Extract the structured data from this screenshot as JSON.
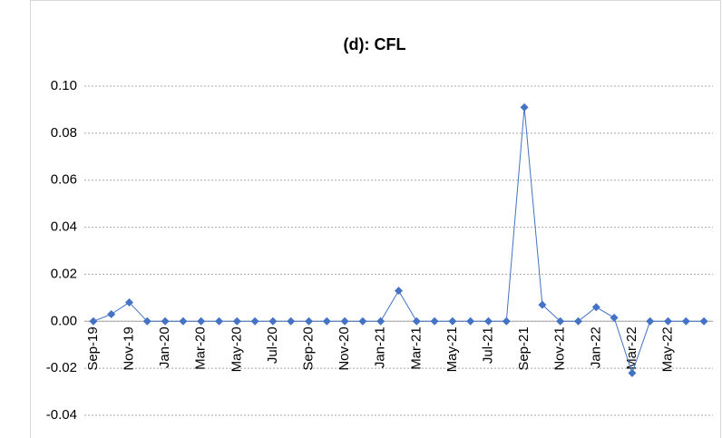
{
  "chart_data": {
    "type": "line",
    "title": "(d): CFL",
    "categories": [
      "Sep-19",
      null,
      "Nov-19",
      null,
      "Jan-20",
      null,
      "Mar-20",
      null,
      "May-20",
      null,
      "Jul-20",
      null,
      "Sep-20",
      null,
      "Nov-20",
      null,
      "Jan-21",
      null,
      "Mar-21",
      null,
      "May-21",
      null,
      "Jul-21",
      null,
      "Sep-21",
      null,
      "Nov-21",
      null,
      "Jan-22",
      null,
      "Mar-22",
      null,
      "May-22",
      null,
      null
    ],
    "series": [
      {
        "color": "#4472c4",
        "values": [
          0,
          0.003,
          0.008,
          0,
          0,
          0,
          0,
          0,
          0,
          0,
          0,
          0,
          0,
          0,
          0,
          0,
          0,
          0.013,
          0,
          0,
          0,
          0,
          0,
          0,
          0.091,
          0.007,
          0,
          0,
          0.006,
          0.0015,
          -0.022,
          0,
          0,
          0,
          0
        ]
      }
    ],
    "ylim": [
      -0.04,
      0.1
    ],
    "yticks": [
      {
        "value": -0.04,
        "label": "-0.04"
      },
      {
        "value": -0.02,
        "label": "-0.02"
      },
      {
        "value": 0,
        "label": "0.00"
      },
      {
        "value": 0.02,
        "label": "0.02"
      },
      {
        "value": 0.04,
        "label": "0.04"
      },
      {
        "value": 0.06,
        "label": "0.06"
      },
      {
        "value": 0.08,
        "label": "0.08"
      },
      {
        "value": 0.1,
        "label": "0.10"
      }
    ],
    "grid": true
  }
}
